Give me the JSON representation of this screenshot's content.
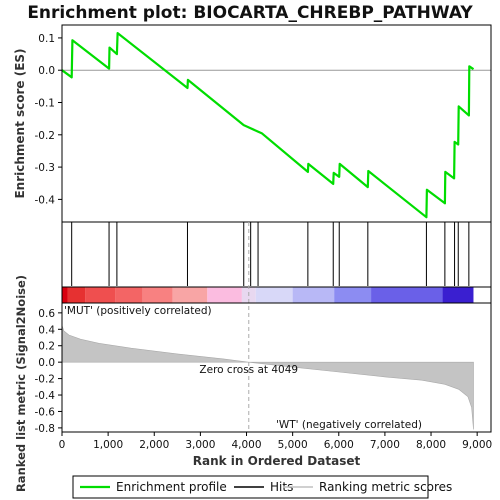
{
  "chart_data": {
    "type": "line",
    "title": "Enrichment plot: BIOCARTA_CHREBP_PATHWAY",
    "enrichment": {
      "ylabel": "Enrichment score (ES)",
      "ylim": [
        -0.47,
        0.14
      ],
      "yticks": [
        0.1,
        0.0,
        -0.1,
        -0.2,
        -0.3,
        -0.4
      ],
      "ytick_labels": [
        "0.1",
        "0.0",
        "-0.1",
        "-0.2",
        "-0.3",
        "-0.4"
      ],
      "series": {
        "color": "#00dd00",
        "points": [
          [
            0,
            0.0
          ],
          [
            210,
            -0.022
          ],
          [
            225,
            0.093
          ],
          [
            1020,
            0.005
          ],
          [
            1030,
            0.07
          ],
          [
            1190,
            0.05
          ],
          [
            1205,
            0.115
          ],
          [
            2720,
            -0.055
          ],
          [
            2730,
            -0.03
          ],
          [
            3940,
            -0.17
          ],
          [
            4250,
            -0.19
          ],
          [
            4330,
            -0.195
          ],
          [
            5330,
            -0.315
          ],
          [
            5340,
            -0.29
          ],
          [
            5880,
            -0.352
          ],
          [
            5890,
            -0.318
          ],
          [
            6010,
            -0.33
          ],
          [
            6020,
            -0.29
          ],
          [
            6630,
            -0.362
          ],
          [
            6640,
            -0.312
          ],
          [
            7900,
            -0.455
          ],
          [
            7910,
            -0.37
          ],
          [
            8300,
            -0.412
          ],
          [
            8310,
            -0.315
          ],
          [
            8500,
            -0.335
          ],
          [
            8510,
            -0.222
          ],
          [
            8590,
            -0.23
          ],
          [
            8600,
            -0.112
          ],
          [
            8820,
            -0.14
          ],
          [
            8830,
            0.012
          ],
          [
            8920,
            0.003
          ]
        ]
      }
    },
    "hits": [
      210,
      1020,
      1190,
      2720,
      3940,
      4090,
      4250,
      5330,
      5880,
      6010,
      6630,
      7900,
      8300,
      8510,
      8590,
      8820
    ],
    "metric": {
      "ylabel": "Ranked list metric (Signal2Noise)",
      "ylim": [
        -0.85,
        0.72
      ],
      "yticks": [
        0.6,
        0.4,
        0.2,
        0.0,
        -0.2,
        -0.4,
        -0.6,
        -0.8
      ],
      "ytick_labels": [
        "0.6",
        "0.4",
        "0.2",
        "0.0",
        "-0.2",
        "-0.4",
        "-0.6",
        "-0.8"
      ],
      "curve": [
        [
          0,
          0.45
        ],
        [
          40,
          0.38
        ],
        [
          150,
          0.33
        ],
        [
          400,
          0.28
        ],
        [
          800,
          0.23
        ],
        [
          1500,
          0.17
        ],
        [
          2500,
          0.1
        ],
        [
          3500,
          0.04
        ],
        [
          4049,
          0.0
        ],
        [
          5000,
          -0.06
        ],
        [
          6000,
          -0.12
        ],
        [
          7000,
          -0.18
        ],
        [
          7800,
          -0.22
        ],
        [
          8300,
          -0.27
        ],
        [
          8600,
          -0.33
        ],
        [
          8800,
          -0.42
        ],
        [
          8880,
          -0.55
        ],
        [
          8920,
          -0.82
        ]
      ],
      "zero_cross_label": "Zero cross at 4049",
      "zero_cross_x": 4049,
      "pos_label": "'MUT' (positively correlated)",
      "neg_label": "'WT' (negatively correlated)"
    },
    "xlabel": "Rank in Ordered Dataset",
    "xlim": [
      0,
      9300
    ],
    "xticks": [
      0,
      1000,
      2000,
      3000,
      4000,
      5000,
      6000,
      7000,
      8000,
      9000
    ],
    "xtick_labels": [
      "0",
      "1,000",
      "2,000",
      "3,000",
      "4,000",
      "5,000",
      "6,000",
      "7,000",
      "8,000",
      "9,000"
    ],
    "max_rank": 8920,
    "heat_segments": [
      {
        "start": 0,
        "end": 120,
        "color": "#d8000f"
      },
      {
        "start": 120,
        "end": 500,
        "color": "#e63131"
      },
      {
        "start": 500,
        "end": 1150,
        "color": "#ef4f4f"
      },
      {
        "start": 1150,
        "end": 1750,
        "color": "#f36565"
      },
      {
        "start": 1750,
        "end": 2400,
        "color": "#f88181"
      },
      {
        "start": 2400,
        "end": 3150,
        "color": "#f8a5a5"
      },
      {
        "start": 3150,
        "end": 3900,
        "color": "#fbbce0"
      },
      {
        "start": 3900,
        "end": 4200,
        "color": "#e8d8f0"
      },
      {
        "start": 4200,
        "end": 5000,
        "color": "#d8d8f8"
      },
      {
        "start": 5000,
        "end": 5900,
        "color": "#b8b8f6"
      },
      {
        "start": 5900,
        "end": 6700,
        "color": "#8c8cf2"
      },
      {
        "start": 6700,
        "end": 8250,
        "color": "#6a60e8"
      },
      {
        "start": 8250,
        "end": 8920,
        "color": "#3a1fd0"
      }
    ],
    "legend": {
      "items": [
        {
          "label": "Enrichment profile",
          "color": "#00dd00"
        },
        {
          "label": "Hits",
          "color": "#000000"
        },
        {
          "label": "Ranking metric scores",
          "color": "#c0c0c0"
        }
      ]
    }
  }
}
